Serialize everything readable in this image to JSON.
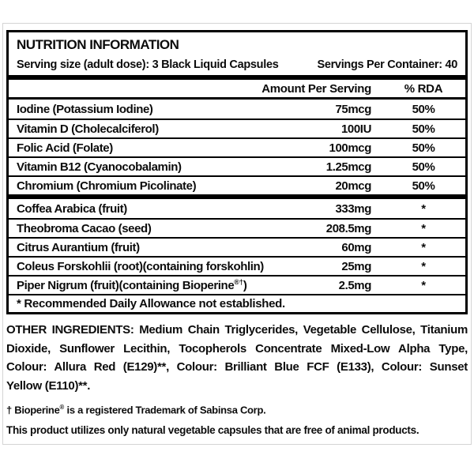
{
  "label": {
    "title": "NUTRITION INFORMATION",
    "serving_size": "Serving size (adult dose): 3 Black Liquid Capsules",
    "servings_per_container": "Servings Per Container: 40",
    "columns": {
      "amount": "Amount Per Serving",
      "rda": "% RDA"
    },
    "vitamins": [
      {
        "name": "Iodine (Potassium Iodine)",
        "amount": "75mcg",
        "rda": "50%"
      },
      {
        "name": "Vitamin D (Cholecalciferol)",
        "amount": "100IU",
        "rda": "50%"
      },
      {
        "name": "Folic Acid (Folate)",
        "amount": "100mcg",
        "rda": "50%"
      },
      {
        "name": "Vitamin B12 (Cyanocobalamin)",
        "amount": "1.25mcg",
        "rda": "50%"
      },
      {
        "name": "Chromium (Chromium Picolinate)",
        "amount": "20mcg",
        "rda": "50%"
      }
    ],
    "botanicals": [
      {
        "name": "Coffea Arabica (fruit)",
        "amount": "333mg",
        "rda": "*"
      },
      {
        "name": "Theobroma Cacao (seed)",
        "amount": "208.5mg",
        "rda": "*"
      },
      {
        "name": "Citrus Aurantium (fruit)",
        "amount": "60mg",
        "rda": "*"
      },
      {
        "name": "Coleus Forskohlii (root)(containing forskohlin)",
        "amount": "25mg",
        "rda": "*"
      },
      {
        "name_main": "Piper Nigrum (fruit)(containing Bioperine",
        "name_sup": "®†",
        "name_end": ")",
        "amount": "2.5mg",
        "rda": "*"
      }
    ],
    "rda_footnote": "* Recommended Daily Allowance not established.",
    "other_ingredients_lines": [
      "OTHER INGREDIENTS: Medium Chain Triglycerides, Vegetable Cellulose, Titanium",
      "Dioxide, Sunflower Lecithin, Tocopherols Concentrate Mixed-Low Alpha Type,",
      "Colour: Allura Red (E129)**, Colour: Brilliant Blue FCF (E133), Colour: Sunset",
      "Yellow (E110)**."
    ],
    "trademark_note_parts": [
      "† Bioperine",
      "®",
      " is a registered Trademark of Sabinsa Corp."
    ],
    "capsule_note": "This product utilizes only natural vegetable capsules that are free of animal products.",
    "colors": {
      "text": "#0c0c0c",
      "rule": "#000000",
      "frame_border": "#d4d4d4",
      "background": "#ffffff"
    }
  }
}
